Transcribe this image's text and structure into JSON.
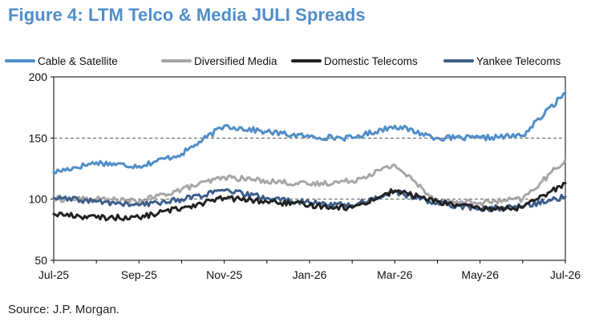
{
  "figure": {
    "title": "Figure 4: LTM Telco & Media JULI Spreads",
    "source": "Source: J.P. Morgan."
  },
  "chart_data": {
    "type": "line",
    "x": [
      "Jul-25",
      "Aug-25",
      "Sep-25",
      "Oct-25",
      "Nov-25",
      "Dec-25",
      "Jan-26",
      "Feb-26",
      "Mar-26",
      "Apr-26",
      "May-26",
      "Jun-26",
      "Jul-26"
    ],
    "xticks": [
      "Jul-25",
      "Sep-25",
      "Nov-25",
      "Jan-26",
      "Mar-26",
      "May-26",
      "Jul-26"
    ],
    "ylim": [
      50,
      200
    ],
    "yticks": [
      50,
      100,
      150,
      200
    ],
    "reference_lines": [
      100,
      150
    ],
    "legend_position": "top",
    "series": [
      {
        "name": "Cable & Satellite",
        "color": "#4f8ec9",
        "values": [
          122,
          130,
          127,
          137,
          160,
          155,
          151,
          150,
          160,
          150,
          150,
          152,
          187
        ]
      },
      {
        "name": "Diversified Media",
        "color": "#a6a6a6",
        "values": [
          100,
          100,
          98,
          108,
          118,
          115,
          112,
          115,
          128,
          98,
          97,
          100,
          132
        ]
      },
      {
        "name": "Domestic Telecoms",
        "color": "#222222",
        "values": [
          88,
          85,
          85,
          93,
          101,
          98,
          95,
          93,
          107,
          98,
          92,
          93,
          113
        ]
      },
      {
        "name": "Yankee Telecoms",
        "color": "#3d5e8a",
        "values": [
          101,
          98,
          95,
          100,
          107,
          101,
          97,
          95,
          106,
          97,
          92,
          94,
          102
        ]
      }
    ]
  }
}
